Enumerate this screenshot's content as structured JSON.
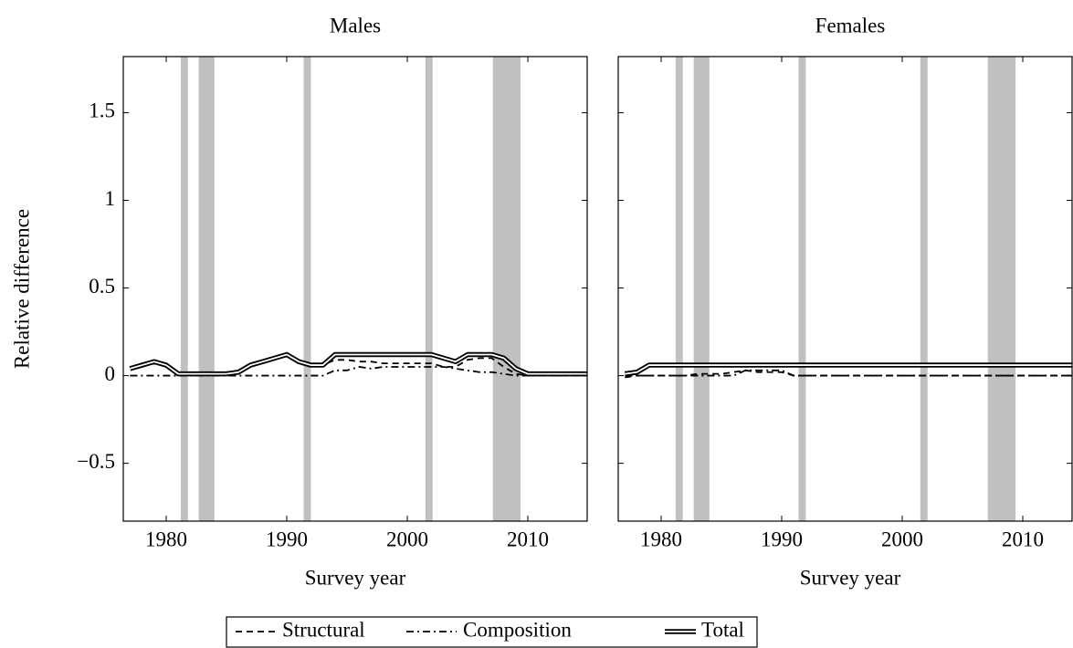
{
  "chart_data": [
    {
      "type": "line",
      "title": "Males",
      "xlabel": "Survey year",
      "ylabel": "Relative difference",
      "x": [
        1977,
        1978,
        1979,
        1980,
        1981,
        1982,
        1983,
        1984,
        1985,
        1986,
        1987,
        1988,
        1989,
        1990,
        1991,
        1992,
        1993,
        1994,
        1995,
        1996,
        1997,
        1998,
        1999,
        2000,
        2001,
        2002,
        2003,
        2004,
        2005,
        2006,
        2007,
        2008,
        2009,
        2010,
        2011,
        2012,
        2013,
        2014,
        2015
      ],
      "xlim": [
        1976.44,
        2014.92
      ],
      "xticks": [
        1980,
        1990,
        2000,
        2010
      ],
      "ylim": [
        -0.83,
        1.82
      ],
      "yticks": [
        {
          "value": -0.5,
          "label": "−0.5"
        },
        0,
        0.5,
        1,
        1.5
      ],
      "shaded_regions": [
        [
          1981.2,
          1981.8
        ],
        [
          1982.7,
          1984.0
        ],
        [
          1991.4,
          1992.0
        ],
        [
          2001.5,
          2002.1
        ],
        [
          2007.1,
          2009.4
        ]
      ],
      "series": [
        {
          "name": "Structural",
          "color": "#000000",
          "line_style": "dashed",
          "values": [
            0.04,
            0.06,
            0.08,
            0.06,
            0.01,
            0.01,
            0.01,
            0.01,
            0.01,
            0.02,
            0.06,
            0.08,
            0.1,
            0.12,
            0.08,
            0.06,
            0.06,
            0.09,
            0.09,
            0.08,
            0.08,
            0.07,
            0.07,
            0.07,
            0.07,
            0.07,
            0.05,
            0.05,
            0.09,
            0.1,
            0.1,
            0.05,
            0.01,
            0,
            0,
            0,
            0,
            0,
            0
          ]
        },
        {
          "name": "Composition",
          "color": "#000000",
          "line_style": "dashdot",
          "values": [
            0,
            0,
            0,
            0,
            0,
            0,
            0,
            0,
            0,
            0,
            0,
            0,
            0,
            0,
            0,
            0,
            0,
            0.03,
            0.03,
            0.05,
            0.04,
            0.05,
            0.05,
            0.05,
            0.05,
            0.05,
            0.05,
            0.04,
            0.03,
            0.02,
            0.02,
            0.01,
            0,
            0,
            0,
            0,
            0,
            0,
            0
          ]
        },
        {
          "name": "Total",
          "color": "#000000",
          "line_style": "double",
          "values": [
            0.04,
            0.06,
            0.08,
            0.06,
            0.01,
            0.01,
            0.01,
            0.01,
            0.01,
            0.02,
            0.06,
            0.08,
            0.1,
            0.12,
            0.08,
            0.06,
            0.06,
            0.12,
            0.12,
            0.12,
            0.12,
            0.12,
            0.12,
            0.12,
            0.12,
            0.12,
            0.1,
            0.08,
            0.12,
            0.12,
            0.12,
            0.1,
            0.04,
            0.01,
            0.01,
            0.01,
            0.01,
            0.01,
            0.01
          ]
        }
      ]
    },
    {
      "type": "line",
      "title": "Females",
      "xlabel": "Survey year",
      "x": [
        1977,
        1978,
        1979,
        1980,
        1981,
        1982,
        1983,
        1984,
        1985,
        1986,
        1987,
        1988,
        1989,
        1990,
        1991,
        1992,
        1993,
        1994,
        1995,
        1996,
        1997,
        1998,
        1999,
        2000,
        2001,
        2002,
        2003,
        2004,
        2005,
        2006,
        2007,
        2008,
        2009,
        2010,
        2011,
        2012,
        2013,
        2014,
        2015
      ],
      "xlim": [
        1976.44,
        2014.09
      ],
      "xticks": [
        1980,
        1990,
        2000,
        2010
      ],
      "ylim": [
        -0.83,
        1.82
      ],
      "yticks": [
        -0.5,
        0,
        0.5,
        1,
        1.5
      ],
      "shaded_regions": [
        [
          1981.2,
          1981.8
        ],
        [
          1982.7,
          1984.0
        ],
        [
          1991.4,
          1992.0
        ],
        [
          2001.5,
          2002.1
        ],
        [
          2007.1,
          2009.4
        ]
      ],
      "series": [
        {
          "color": "#000000",
          "line_style": "dashed",
          "values": [
            -0.01,
            0,
            0,
            0,
            0,
            0,
            0.01,
            0.01,
            0.01,
            0.02,
            0.03,
            0.02,
            0.02,
            0.02,
            0,
            0,
            0,
            0,
            0,
            0,
            0,
            0,
            0,
            0,
            0,
            0,
            0,
            0,
            0,
            0,
            0,
            0,
            0,
            0,
            0,
            0,
            0,
            0,
            0
          ]
        },
        {
          "color": "#000000",
          "line_style": "dashdot",
          "values": [
            0,
            0,
            0,
            0,
            0,
            0,
            0,
            0,
            0,
            0,
            0.03,
            0.03,
            0.03,
            0.03,
            0,
            0,
            0,
            0,
            0,
            0,
            0,
            0,
            0,
            0,
            0,
            0,
            0,
            0,
            0,
            0,
            0,
            0,
            0,
            0,
            0,
            0,
            0,
            0,
            0
          ]
        },
        {
          "color": "#000000",
          "line_style": "double",
          "values": [
            0.01,
            0.02,
            0.06,
            0.06,
            0.06,
            0.06,
            0.06,
            0.06,
            0.06,
            0.06,
            0.06,
            0.06,
            0.06,
            0.06,
            0.06,
            0.06,
            0.06,
            0.06,
            0.06,
            0.06,
            0.06,
            0.06,
            0.06,
            0.06,
            0.06,
            0.06,
            0.06,
            0.06,
            0.06,
            0.06,
            0.06,
            0.06,
            0.06,
            0.06,
            0.06,
            0.06,
            0.06,
            0.06,
            0.06
          ]
        }
      ]
    }
  ]
}
